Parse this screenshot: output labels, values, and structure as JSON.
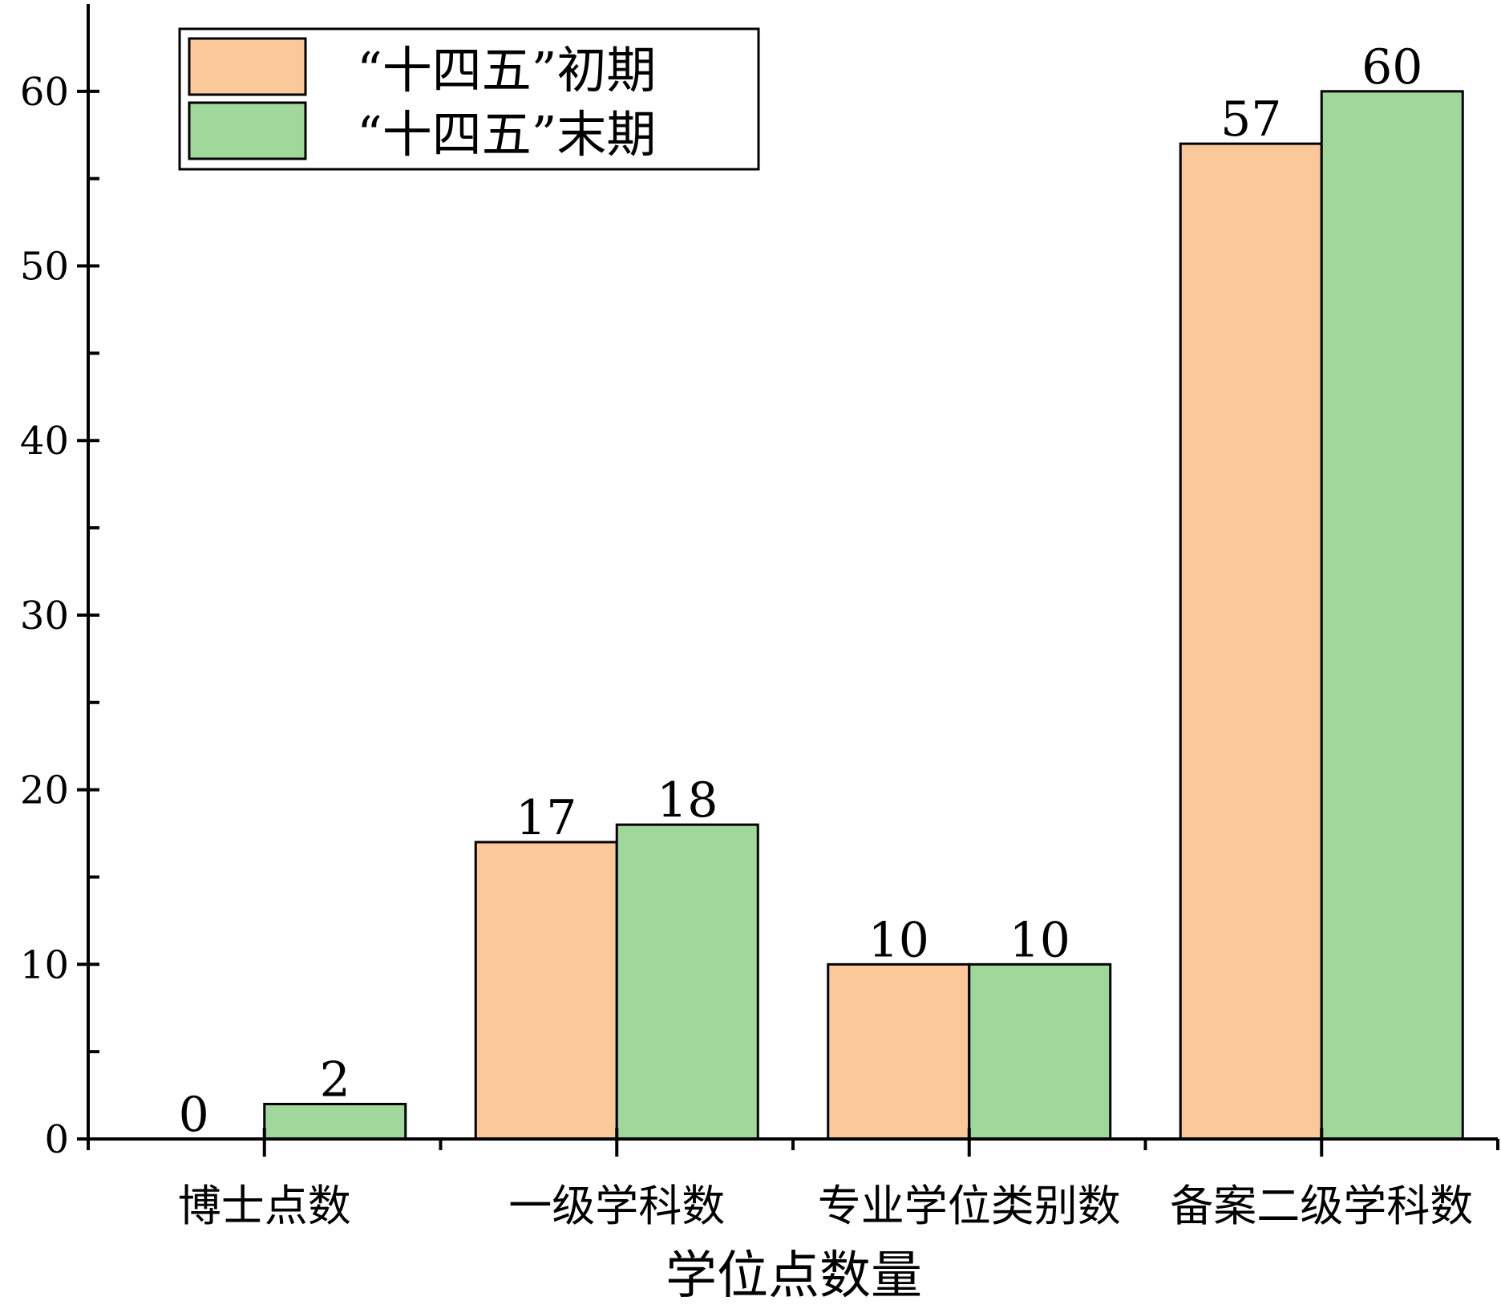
{
  "chart_data": {
    "type": "bar",
    "categories": [
      "博士点数",
      "一级学科数",
      "专业学位类别数",
      "备案二级学科数"
    ],
    "series": [
      {
        "name": "“十四五”初期",
        "values": [
          0,
          17,
          10,
          57
        ],
        "color": "#FBC899"
      },
      {
        "name": "“十四五”末期",
        "values": [
          2,
          18,
          10,
          60
        ],
        "color": "#9FD89A"
      }
    ],
    "title": "",
    "xlabel": "学位点数量",
    "ylabel": "",
    "ylim": [
      0,
      65
    ],
    "yticks": [
      0,
      10,
      20,
      30,
      40,
      50,
      60
    ],
    "grid": false,
    "legend": "top-left"
  }
}
